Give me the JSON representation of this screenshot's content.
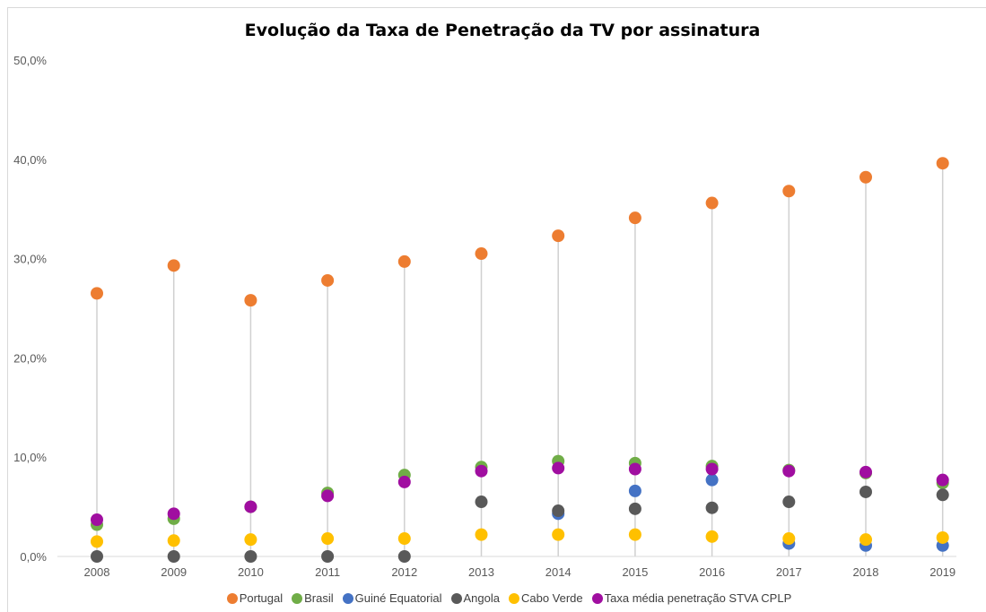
{
  "chart_data": {
    "type": "scatter",
    "title": "Evolução da Taxa de Penetração da TV por assinatura",
    "xlabel": "",
    "ylabel": "",
    "categories": [
      "2008",
      "2009",
      "2010",
      "2011",
      "2012",
      "2013",
      "2014",
      "2015",
      "2016",
      "2017",
      "2018",
      "2019"
    ],
    "y_ticks": [
      "0,0%",
      "10,0%",
      "20,0%",
      "30,0%",
      "40,0%",
      "50,0%"
    ],
    "ylim": [
      0,
      50
    ],
    "grid": false,
    "drop_lines": true,
    "legend_position": "bottom",
    "series": [
      {
        "name": "Portugal",
        "color": "#ED7D31",
        "values": [
          26.5,
          29.3,
          25.8,
          27.8,
          29.7,
          30.5,
          32.3,
          34.1,
          35.6,
          36.8,
          38.2,
          39.6
        ]
      },
      {
        "name": "Brasil",
        "color": "#70AD47",
        "values": [
          3.2,
          3.8,
          5.0,
          6.4,
          8.2,
          9.0,
          9.6,
          9.4,
          9.1,
          8.7,
          8.4,
          7.4
        ]
      },
      {
        "name": "Guiné Equatorial",
        "color": "#4472C4",
        "values": [
          null,
          null,
          null,
          null,
          null,
          null,
          4.3,
          6.6,
          7.7,
          1.3,
          1.1,
          1.1
        ]
      },
      {
        "name": "Angola",
        "color": "#595959",
        "values": [
          0.0,
          0.0,
          0.0,
          0.0,
          0.0,
          5.5,
          4.6,
          4.8,
          4.9,
          5.5,
          6.5,
          6.2
        ]
      },
      {
        "name": "Cabo Verde",
        "color": "#FFC000",
        "values": [
          1.5,
          1.6,
          1.7,
          1.8,
          1.8,
          2.2,
          2.2,
          2.2,
          2.0,
          1.8,
          1.7,
          1.9
        ]
      },
      {
        "name": "Taxa média penetração STVA CPLP",
        "color": "#A00EA0",
        "values": [
          3.7,
          4.3,
          5.0,
          6.1,
          7.5,
          8.6,
          8.9,
          8.8,
          8.8,
          8.6,
          8.5,
          7.7
        ]
      }
    ]
  }
}
